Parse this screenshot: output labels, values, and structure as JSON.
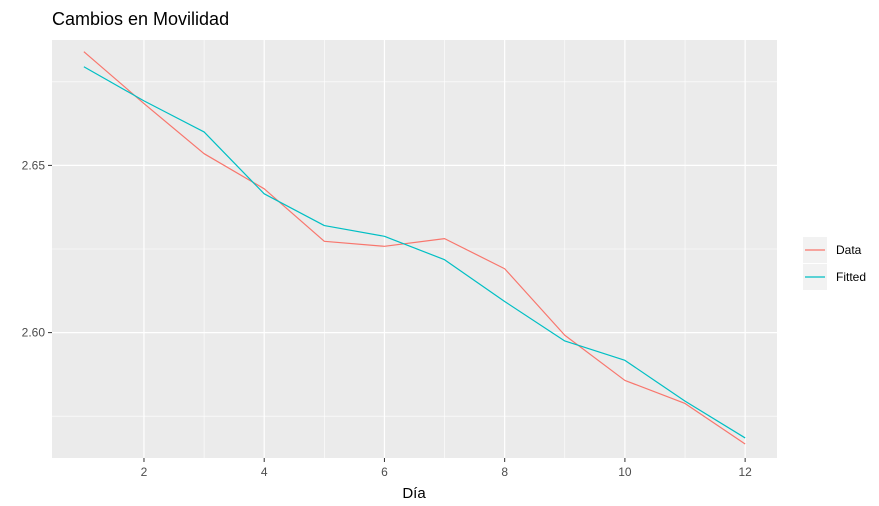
{
  "chart_data": {
    "type": "line",
    "title": "Cambios en Movilidad",
    "xlabel": "Día",
    "ylabel": "",
    "x": [
      1,
      2,
      3,
      4,
      5,
      6,
      7,
      8,
      9,
      10,
      11,
      12
    ],
    "series": [
      {
        "name": "Data",
        "values": [
          2.684,
          2.6685,
          2.6535,
          2.643,
          2.6273,
          2.6258,
          2.6281,
          2.6191,
          2.5992,
          2.5857,
          2.5788,
          2.5667
        ],
        "color": "#F8766D"
      },
      {
        "name": "Fitted",
        "values": [
          2.6795,
          2.6693,
          2.66,
          2.6415,
          2.632,
          2.6288,
          2.6218,
          2.6093,
          2.5975,
          2.5917,
          2.5795,
          2.5685
        ],
        "color": "#00BFC4"
      }
    ],
    "xlim": [
      0.47,
      12.53
    ],
    "ylim": [
      2.5625,
      2.6875
    ],
    "x_ticks": [
      2,
      4,
      6,
      8,
      10,
      12
    ],
    "x_minor_ticks": [
      3,
      5,
      7,
      9,
      11
    ],
    "y_ticks": [
      2.6,
      2.65
    ],
    "y_tick_labels": [
      "2.60",
      "2.65"
    ],
    "y_minor_ticks": [
      2.575,
      2.625,
      2.675
    ],
    "grid": true,
    "legend_position": "right",
    "colors": {
      "panel": "#EBEBEB",
      "grid": "#FFFFFF",
      "axis_text": "#4D4D4D"
    }
  }
}
